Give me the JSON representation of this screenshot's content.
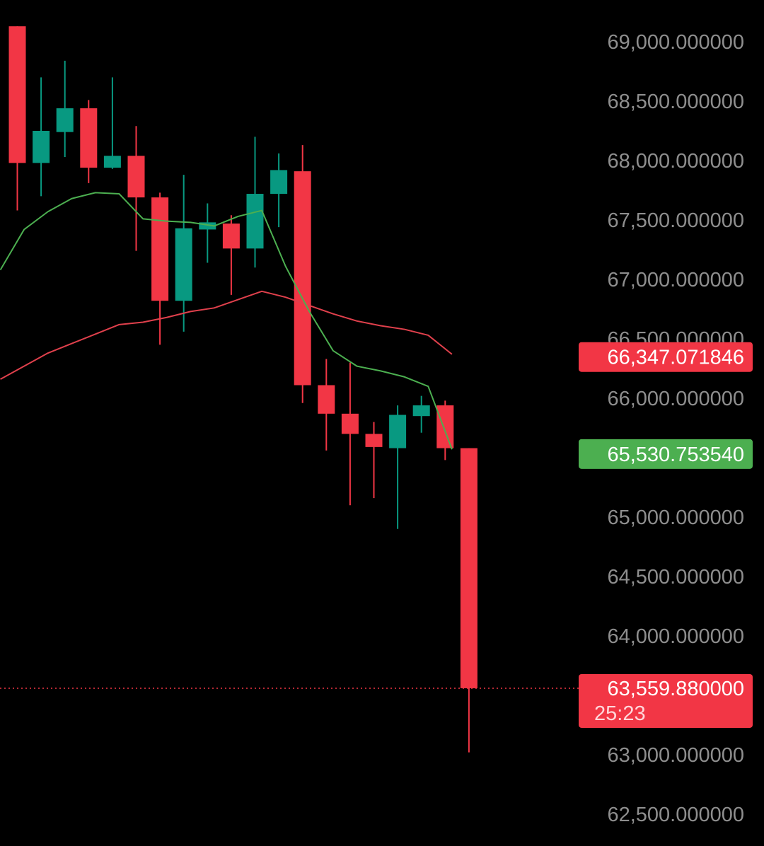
{
  "chart_data": {
    "type": "candlestick",
    "title": "",
    "xlabel": "",
    "ylabel": "",
    "ylim": [
      62350,
      69150
    ],
    "y_ticks": [
      {
        "value": 69000,
        "label": "69,000.000000"
      },
      {
        "value": 68500,
        "label": "68,500.000000"
      },
      {
        "value": 68000,
        "label": "68,000.000000"
      },
      {
        "value": 67500,
        "label": "67,500.000000"
      },
      {
        "value": 67000,
        "label": "67,000.000000"
      },
      {
        "value": 66500,
        "label": "66,500.000000"
      },
      {
        "value": 66000,
        "label": "66,000.000000"
      },
      {
        "value": 65000,
        "label": "65,000.000000"
      },
      {
        "value": 64500,
        "label": "64,500.000000"
      },
      {
        "value": 64000,
        "label": "64,000.000000"
      },
      {
        "value": 63000,
        "label": "63,000.000000"
      },
      {
        "value": 62500,
        "label": "62,500.000000"
      }
    ],
    "candles": [
      {
        "o": 69130,
        "h": 69130,
        "l": 67580,
        "c": 67980
      },
      {
        "o": 67980,
        "h": 68700,
        "l": 67700,
        "c": 68250
      },
      {
        "o": 68240,
        "h": 68840,
        "l": 68030,
        "c": 68440
      },
      {
        "o": 68440,
        "h": 68510,
        "l": 67810,
        "c": 67940
      },
      {
        "o": 67940,
        "h": 68700,
        "l": 67930,
        "c": 68040
      },
      {
        "o": 68040,
        "h": 68290,
        "l": 67240,
        "c": 67690
      },
      {
        "o": 67690,
        "h": 67730,
        "l": 66450,
        "c": 66820
      },
      {
        "o": 66820,
        "h": 67880,
        "l": 66560,
        "c": 67430
      },
      {
        "o": 67420,
        "h": 67640,
        "l": 67140,
        "c": 67480
      },
      {
        "o": 67470,
        "h": 67540,
        "l": 66870,
        "c": 67260
      },
      {
        "o": 67260,
        "h": 68200,
        "l": 67100,
        "c": 67720
      },
      {
        "o": 67720,
        "h": 68060,
        "l": 67440,
        "c": 67920
      },
      {
        "o": 67910,
        "h": 68130,
        "l": 65960,
        "c": 66110
      },
      {
        "o": 66110,
        "h": 66330,
        "l": 65560,
        "c": 65870
      },
      {
        "o": 65870,
        "h": 66300,
        "l": 65100,
        "c": 65700
      },
      {
        "o": 65700,
        "h": 65800,
        "l": 65160,
        "c": 65590
      },
      {
        "o": 65580,
        "h": 65940,
        "l": 64900,
        "c": 65860
      },
      {
        "o": 65850,
        "h": 66020,
        "l": 65710,
        "c": 65940
      },
      {
        "o": 65940,
        "h": 65980,
        "l": 65480,
        "c": 65580
      },
      {
        "o": 65580,
        "h": 65580,
        "l": 63020,
        "c": 63560
      }
    ],
    "ma_fast": [
      67080,
      67420,
      67570,
      67680,
      67730,
      67720,
      67510,
      67490,
      67480,
      67450,
      67530,
      67580,
      67110,
      66730,
      66400,
      66270,
      66230,
      66180,
      66100,
      65570
    ],
    "ma_slow": [
      66160,
      66270,
      66380,
      66460,
      66540,
      66620,
      66640,
      66680,
      66730,
      66760,
      66830,
      66900,
      66850,
      66780,
      66710,
      66650,
      66610,
      66580,
      66530,
      66370
    ],
    "price_tags": [
      {
        "label": "66,347.071846",
        "value": 66347.071846,
        "color": "#f23645"
      },
      {
        "label": "65,530.753540",
        "value": 65530.75354,
        "color": "#4caf50"
      }
    ],
    "last_price": {
      "label": "63,559.880000",
      "countdown": "25:23",
      "value": 63559.88,
      "color": "#f23645"
    },
    "colors": {
      "up": "#089981",
      "down": "#f23645",
      "ma_fast": "#4caf50",
      "ma_slow": "#e0404c",
      "axis_text": "#8e8e8e",
      "background": "#000000"
    },
    "grid": false
  }
}
